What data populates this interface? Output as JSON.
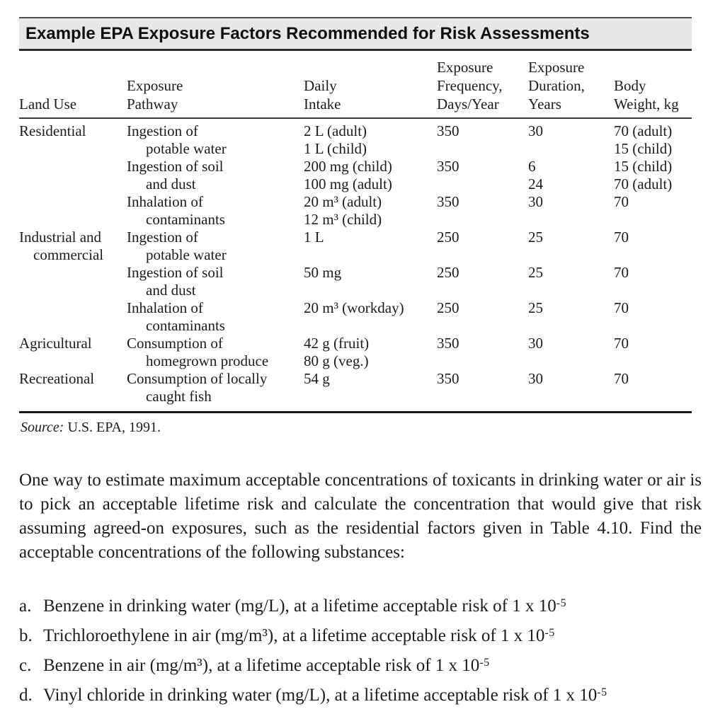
{
  "table": {
    "title": "Example EPA Exposure Factors Recommended for Risk Assessments",
    "headers": [
      [
        "Land Use"
      ],
      [
        "Exposure",
        "Pathway"
      ],
      [
        "Daily",
        "Intake"
      ],
      [
        "Exposure",
        "Frequency,",
        "Days/Year"
      ],
      [
        "Exposure",
        "Duration,",
        "Years"
      ],
      [
        "Body",
        "Weight, kg"
      ]
    ],
    "rows": [
      {
        "cells": [
          "Residential",
          "Ingestion of",
          "2 L (adult)",
          "350",
          "30",
          "70 (adult)"
        ],
        "indent": []
      },
      {
        "cells": [
          "",
          "potable water",
          "1 L (child)",
          "",
          "",
          "15 (child)"
        ],
        "indent": [
          1
        ]
      },
      {
        "cells": [
          "",
          "Ingestion of soil",
          "200 mg (child)",
          "350",
          "6",
          "15 (child)"
        ],
        "indent": []
      },
      {
        "cells": [
          "",
          "and dust",
          "100 mg (adult)",
          "",
          "24",
          "70 (adult)"
        ],
        "indent": [
          1
        ]
      },
      {
        "cells": [
          "",
          "Inhalation of",
          "20 m³ (adult)",
          "350",
          "30",
          "70"
        ],
        "indent": []
      },
      {
        "cells": [
          "",
          "contaminants",
          "12 m³ (child)",
          "",
          "",
          ""
        ],
        "indent": [
          1
        ]
      },
      {
        "cells": [
          "Industrial and",
          "Ingestion of",
          "1 L",
          "250",
          "25",
          "70"
        ],
        "indent": []
      },
      {
        "cells": [
          "commercial",
          "potable water",
          "",
          "",
          "",
          ""
        ],
        "indent": [
          0,
          1
        ]
      },
      {
        "cells": [
          "",
          "Ingestion of soil",
          "50 mg",
          "250",
          "25",
          "70"
        ],
        "indent": []
      },
      {
        "cells": [
          "",
          "and dust",
          "",
          "",
          "",
          ""
        ],
        "indent": [
          1
        ]
      },
      {
        "cells": [
          "",
          "Inhalation of",
          "20 m³ (workday)",
          "250",
          "25",
          "70"
        ],
        "indent": []
      },
      {
        "cells": [
          "",
          "contaminants",
          "",
          "",
          "",
          ""
        ],
        "indent": [
          1
        ]
      },
      {
        "cells": [
          "Agricultural",
          "Consumption of",
          "42 g (fruit)",
          "350",
          "30",
          "70"
        ],
        "indent": []
      },
      {
        "cells": [
          "",
          "homegrown produce",
          "80 g (veg.)",
          "",
          "",
          ""
        ],
        "indent": [
          1
        ]
      },
      {
        "cells": [
          "Recreational",
          "Consumption of locally",
          "54 g",
          "350",
          "30",
          "70"
        ],
        "indent": []
      },
      {
        "cells": [
          "",
          "caught fish",
          "",
          "",
          "",
          ""
        ],
        "indent": [
          1
        ]
      }
    ],
    "source_label": "Source:",
    "source_text": " U.S. EPA, 1991."
  },
  "paragraph": "One way to estimate maximum acceptable concentrations of toxicants in drinking water or air is to pick an acceptable lifetime risk and calculate the concentration that would give that risk assuming agreed-on exposures, such as the residential factors given in Table 4.10. Find the acceptable concentrations of the following substances:",
  "problems": {
    "items": [
      {
        "marker": "a.",
        "text": "Benzene in drinking water (mg/L), at a lifetime acceptable risk of 1 x 10",
        "sup": "-5"
      },
      {
        "marker": "b.",
        "text": "Trichloroethylene in air (mg/m³), at a lifetime acceptable risk of 1 x 10",
        "sup": "-5"
      },
      {
        "marker": "c.",
        "text": "Benzene in air (mg/m³), at a lifetime acceptable risk of 1 x 10",
        "sup": "-5"
      },
      {
        "marker": "d.",
        "text": "Vinyl chloride in drinking water (mg/L), at a lifetime acceptable risk of 1 x 10",
        "sup": "-5"
      }
    ]
  }
}
